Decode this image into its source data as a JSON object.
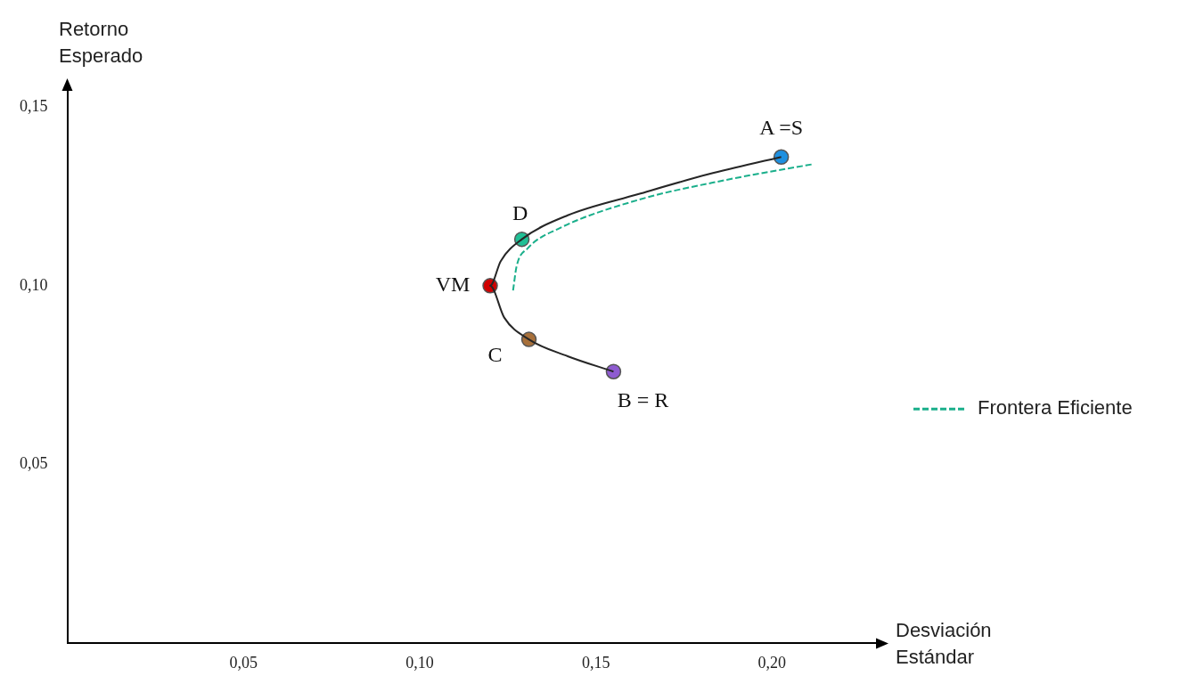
{
  "chart_data": {
    "type": "line",
    "xlabel": "Desviación Estándar",
    "ylabel": "Retorno Esperado",
    "xlim": [
      0,
      0.23
    ],
    "ylim": [
      0,
      0.155
    ],
    "xticks": [
      {
        "value": 0.05,
        "label": "0,05"
      },
      {
        "value": 0.1,
        "label": "0,10"
      },
      {
        "value": 0.15,
        "label": "0,15"
      },
      {
        "value": 0.2,
        "label": "0,20"
      }
    ],
    "yticks": [
      {
        "value": 0.05,
        "label": "0,05"
      },
      {
        "value": 0.1,
        "label": "0,10"
      },
      {
        "value": 0.15,
        "label": "0,15"
      }
    ],
    "grid": false,
    "legend": "right",
    "series": [
      {
        "color": "#262626",
        "marker": "none",
        "line_style": "solid",
        "x": [
          0.155,
          0.142,
          0.131,
          0.124,
          0.12,
          0.123,
          0.129,
          0.142,
          0.162,
          0.182,
          0.2026
        ],
        "values": [
          0.076,
          0.0803,
          0.085,
          0.0911,
          0.1,
          0.1069,
          0.113,
          0.1197,
          0.1256,
          0.1312,
          0.136
        ]
      },
      {
        "name": "Frontera Eficiente",
        "color": "#1aaf8b",
        "marker": "none",
        "line_style": "dashed",
        "x": [
          0.1265,
          0.1275,
          0.1307,
          0.1395,
          0.162,
          0.187,
          0.2116
        ],
        "values": [
          0.0987,
          0.1054,
          0.1105,
          0.116,
          0.124,
          0.1296,
          0.134
        ]
      },
      {
        "type": "scatter",
        "marker": "circle",
        "colors": [
          "#1e90e0",
          "#1fbf95",
          "#d00000",
          "#a8703a",
          "#8e5bd0"
        ],
        "x": [
          0.2026,
          0.129,
          0.12,
          0.131,
          0.155
        ],
        "values": [
          0.136,
          0.113,
          0.1,
          0.085,
          0.076
        ]
      }
    ],
    "annotations": [
      {
        "text": "A =S",
        "x": 0.2026,
        "y": 0.136
      },
      {
        "text": "D",
        "x": 0.129,
        "y": 0.113
      },
      {
        "text": "VM",
        "x": 0.12,
        "y": 0.1
      },
      {
        "text": "C",
        "x": 0.131,
        "y": 0.085
      },
      {
        "text": "B = R",
        "x": 0.155,
        "y": 0.076
      }
    ]
  }
}
